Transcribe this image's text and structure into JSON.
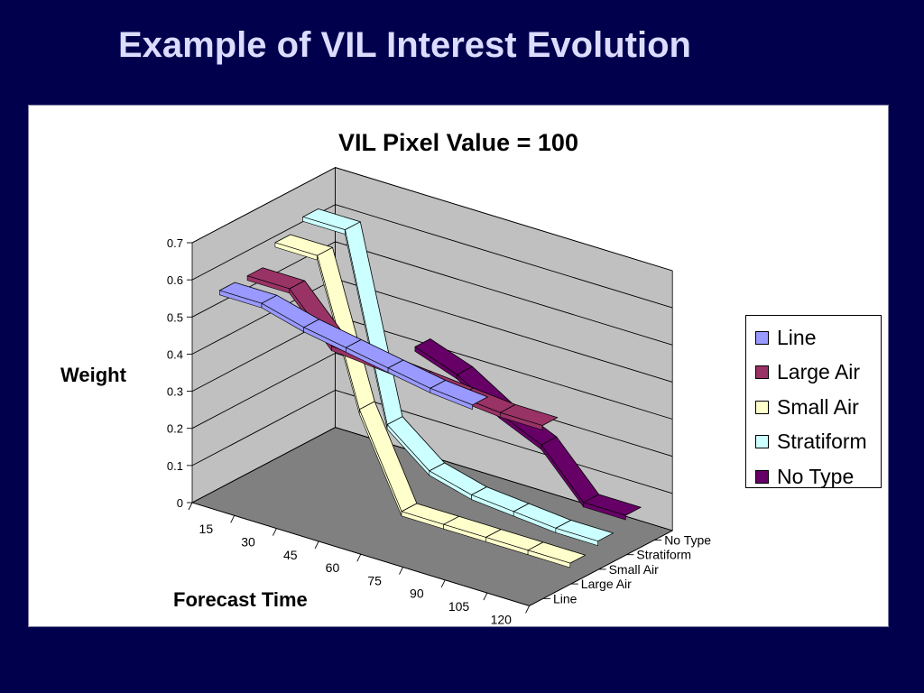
{
  "slide": {
    "title": "Example of VIL Interest Evolution"
  },
  "chart_data": {
    "type": "line",
    "style": "3d-ribbon",
    "title": "VIL Pixel Value = 100",
    "xlabel": "Forecast Time",
    "ylabel": "Weight",
    "categories": [
      "15",
      "30",
      "45",
      "60",
      "75",
      "90",
      "105",
      "120"
    ],
    "depth_categories": [
      "Line",
      "Large Air",
      "Small Air",
      "Stratiform",
      "No Type"
    ],
    "ylim": [
      0,
      0.7
    ],
    "yticks": [
      "0",
      "0.1",
      "0.2",
      "0.3",
      "0.4",
      "0.5",
      "0.6",
      "0.7"
    ],
    "grid": true,
    "legend_position": "right",
    "series": [
      {
        "name": "Line",
        "color": "#9999ff",
        "values": [
          0.58,
          0.58,
          0.55,
          0.53,
          0.51,
          0.49,
          0.48,
          null
        ]
      },
      {
        "name": "Large Air",
        "color": "#993366",
        "values": [
          0.58,
          0.58,
          0.46,
          0.45,
          0.44,
          0.43,
          0.42,
          0.42
        ]
      },
      {
        "name": "Small Air",
        "color": "#ffffcc",
        "values": [
          0.63,
          0.63,
          0.25,
          0.01,
          0.01,
          0.01,
          0.01,
          0.01
        ]
      },
      {
        "name": "Stratiform",
        "color": "#ccffff",
        "values": [
          0.66,
          0.66,
          0.17,
          0.08,
          0.05,
          0.04,
          0.03,
          0.03
        ]
      },
      {
        "name": "No Type",
        "color": "#660066",
        "values": [
          null,
          null,
          0.34,
          0.3,
          0.23,
          0.18,
          0.06,
          0.06
        ]
      }
    ]
  }
}
